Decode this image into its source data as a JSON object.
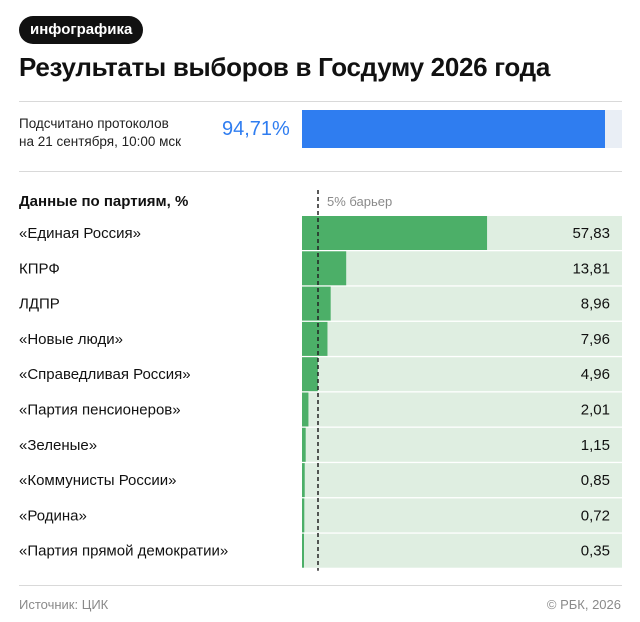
{
  "badge": "инфографика",
  "title": "Результаты выборов в Госдуму 2026 года",
  "counted": {
    "label_line1": "Подсчитано протоколов",
    "label_line2": "на 21 сентября, 10:00 мск",
    "value_text": "94,71%",
    "value": 94.71,
    "color": "#2f7df0"
  },
  "section_title": "Данные по партиям, %",
  "barrier_label": "5% барьер",
  "chart_data": {
    "type": "bar",
    "orientation": "horizontal",
    "categories": [
      "«Единая Россия»",
      "КПРФ",
      "ЛДПР",
      "«Новые люди»",
      "«Справедливая Россия»",
      "«Партия пенсионеров»",
      "«Зеленые»",
      "«Коммунисты России»",
      "«Родина»",
      "«Партия прямой демократии»"
    ],
    "values": [
      57.83,
      13.81,
      8.96,
      7.96,
      4.96,
      2.01,
      1.15,
      0.85,
      0.72,
      0.35
    ],
    "value_labels": [
      "57,83",
      "13,81",
      "8,96",
      "7,96",
      "4,96",
      "2,01",
      "1,15",
      "0,85",
      "0,72",
      "0,35"
    ],
    "xlim": [
      0,
      100
    ],
    "threshold": 5,
    "bar_color": "#4caf68",
    "track_color": "#dfeee1"
  },
  "footer": {
    "source": "Источник: ЦИК",
    "copyright": "© РБК, 2026"
  }
}
